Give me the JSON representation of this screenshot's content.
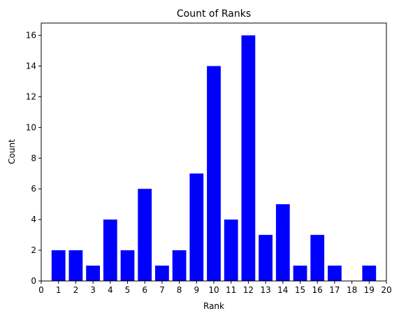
{
  "chart_data": {
    "type": "bar",
    "title": "Count of Ranks",
    "xlabel": "Rank",
    "ylabel": "Count",
    "xlim": [
      0,
      20
    ],
    "ylim": [
      0,
      16.8
    ],
    "x_ticks": [
      "0",
      "1",
      "2",
      "3",
      "4",
      "5",
      "6",
      "7",
      "8",
      "9",
      "10",
      "11",
      "12",
      "13",
      "14",
      "15",
      "16",
      "17",
      "18",
      "19",
      "20"
    ],
    "y_ticks": [
      "0",
      "2",
      "4",
      "6",
      "8",
      "10",
      "12",
      "14",
      "16"
    ],
    "categories": [
      1,
      2,
      3,
      4,
      5,
      6,
      7,
      8,
      9,
      10,
      11,
      12,
      13,
      14,
      15,
      16,
      17,
      19
    ],
    "values": [
      2,
      2,
      1,
      4,
      2,
      6,
      1,
      2,
      7,
      14,
      4,
      16,
      3,
      5,
      1,
      3,
      1,
      1
    ],
    "bar_color": "#0000ff",
    "grid": false,
    "legend": "none"
  }
}
